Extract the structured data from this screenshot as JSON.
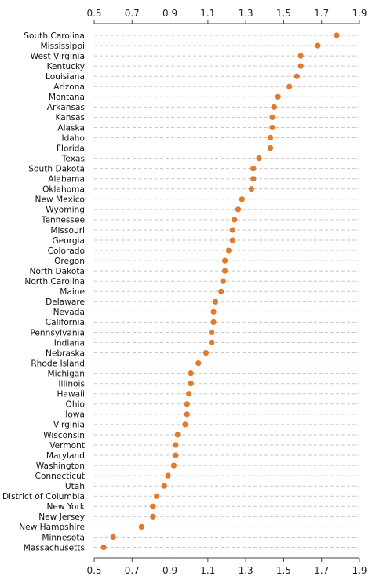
{
  "chart_data": {
    "type": "scatter",
    "orientation": "dot-plot-horizontal",
    "title": "",
    "xlabel": "",
    "ylabel": "",
    "xlim": [
      0.5,
      1.9
    ],
    "x_ticks": [
      "0.5",
      "0.7",
      "0.9",
      "1.1",
      "1.3",
      "1.5",
      "1.7",
      "1.9"
    ],
    "x_tick_values": [
      0.5,
      0.7,
      0.9,
      1.1,
      1.3,
      1.5,
      1.7,
      1.9
    ],
    "tick_labels_position": "top and bottom",
    "grid": "horizontal dashed",
    "marker_color": "#e07b2e",
    "categories": [
      "South Carolina",
      "Mississippi",
      "West Virginia",
      "Kentucky",
      "Louisiana",
      "Arizona",
      "Montana",
      "Arkansas",
      "Kansas",
      "Alaska",
      "Idaho",
      "Florida",
      "Texas",
      "South Dakota",
      "Alabama",
      "Oklahoma",
      "New Mexico",
      "Wyoming",
      "Tennessee",
      "Missouri",
      "Georgia",
      "Colorado",
      "Oregon",
      "North Dakota",
      "North Carolina",
      "Maine",
      "Delaware",
      "Nevada",
      "California",
      "Pennsylvania",
      "Indiana",
      "Nebraska",
      "Rhode Island",
      "Michigan",
      "Illinois",
      "Hawaii",
      "Ohio",
      "Iowa",
      "Virginia",
      "Wisconsin",
      "Vermont",
      "Maryland",
      "Washington",
      "Connecticut",
      "Utah",
      "District of Columbia",
      "New York",
      "New Jersey",
      "New Hampshire",
      "Minnesota",
      "Massachusetts"
    ],
    "values": [
      1.78,
      1.68,
      1.59,
      1.59,
      1.57,
      1.53,
      1.47,
      1.45,
      1.44,
      1.44,
      1.43,
      1.43,
      1.37,
      1.34,
      1.34,
      1.33,
      1.28,
      1.26,
      1.24,
      1.23,
      1.23,
      1.21,
      1.19,
      1.19,
      1.18,
      1.17,
      1.14,
      1.13,
      1.13,
      1.12,
      1.12,
      1.09,
      1.05,
      1.01,
      1.01,
      1.0,
      0.99,
      0.99,
      0.98,
      0.94,
      0.93,
      0.93,
      0.92,
      0.89,
      0.87,
      0.83,
      0.81,
      0.81,
      0.75,
      0.6,
      0.55
    ]
  }
}
